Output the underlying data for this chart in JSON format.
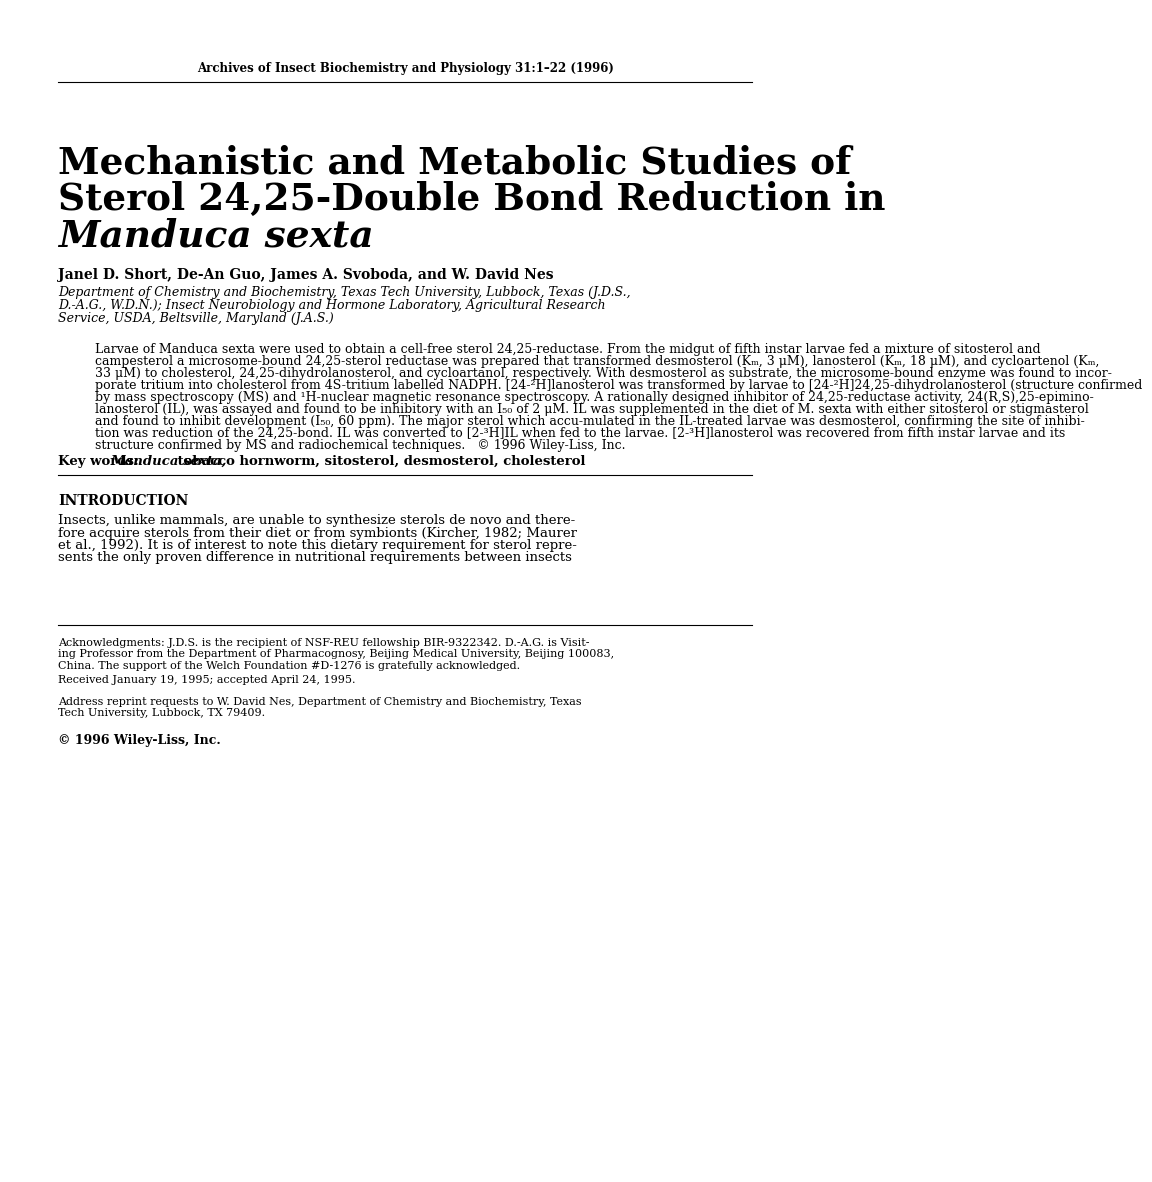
{
  "journal_header": "Archives of Insect Biochemistry and Physiology 31:1–22 (1996)",
  "title_line1": "Mechanistic and Metabolic Studies of",
  "title_line2": "Sterol 24,25-Double Bond Reduction in",
  "title_line3": "Manduca sexta",
  "authors": "Janel D. Short, De-An Guo, James A. Svoboda, and W. David Nes",
  "affiliation_line1": "Department of Chemistry and Biochemistry, Texas Tech University, Lubbock, Texas (J.D.S.,",
  "affiliation_line2": "D.-A.G., W.D.N.); Insect Neurobiology and Hormone Laboratory, Agricultural Research",
  "affiliation_line3": "Service, USDA, Beltsville, Maryland (J.A.S.)",
  "abstract_lines": [
    "Larvae of Manduca sexta were used to obtain a cell-free sterol 24,25-reductase. From the midgut of fifth instar larvae fed a mixture of sitosterol and",
    "campesterol a microsome-bound 24,25-sterol reductase was prepared that transformed desmosterol (Kₘ, 3 μM), lanosterol (Kₘ, 18 μM), and cycloartenol (Kₘ,",
    "33 μM) to cholesterol, 24,25-dihydrolanosterol, and cycloartanol, respectively. With desmosterol as substrate, the microsome-bound enzyme was found to incor-",
    "porate tritium into cholesterol from 4S-tritium labelled NADPH. [24-²H]lanosterol was transformed by larvae to [24-²H]24,25-dihydrolanosterol (structure confirmed",
    "by mass spectroscopy (MS) and ¹H-nuclear magnetic resonance spectroscopy. A rationally designed inhibitor of 24,25-reductase activity, 24(R,S),25-epimino-",
    "lanosterol (IL), was assayed and found to be inhibitory with an I₅₀ of 2 μM. IL was supplemented in the diet of M. sexta with either sitosterol or stigmasterol",
    "and found to inhibit development (I₅₀, 60 ppm). The major sterol which accu-mulated in the IL-treated larvae was desmosterol, confirming the site of inhibi-",
    "tion was reduction of the 24,25-bond. IL was converted to [2-³H]IL when fed to the larvae. [2-³H]lanosterol was recovered from fifth instar larvae and its",
    "structure confirmed by MS and radiochemical techniques.   © 1996 Wiley-Liss, Inc."
  ],
  "keywords_label": "Key words:",
  "keywords_italic": "Manduca sexta,",
  "keywords_rest": " tobacco hornworm, sitosterol, desmosterol, cholesterol",
  "section_intro": "INTRODUCTION",
  "intro_lines": [
    "Insects, unlike mammals, are unable to synthesize sterols de novo and there-",
    "fore acquire sterols from their diet or from symbionts (Kircher, 1982; Maurer",
    "et al., 1992). It is of interest to note this dietary requirement for sterol repre-",
    "sents the only proven difference in nutritional requirements between insects"
  ],
  "ack_lines": [
    "Acknowledgments: J.D.S. is the recipient of NSF-REU fellowship BIR-9322342. D.-A.G. is Visit-",
    "ing Professor from the Department of Pharmacognosy, Beijing Medical University, Beijing 100083,",
    "China. The support of the Welch Foundation #D-1276 is gratefully acknowledged."
  ],
  "received": "Received January 19, 1995; accepted April 24, 1995.",
  "address_lines": [
    "Address reprint requests to W. David Nes, Department of Chemistry and Biochemistry, Texas",
    "Tech University, Lubbock, TX 79409."
  ],
  "copyright": "© 1996 Wiley-Liss, Inc.",
  "bg_color": "#ffffff",
  "text_color": "#000000"
}
